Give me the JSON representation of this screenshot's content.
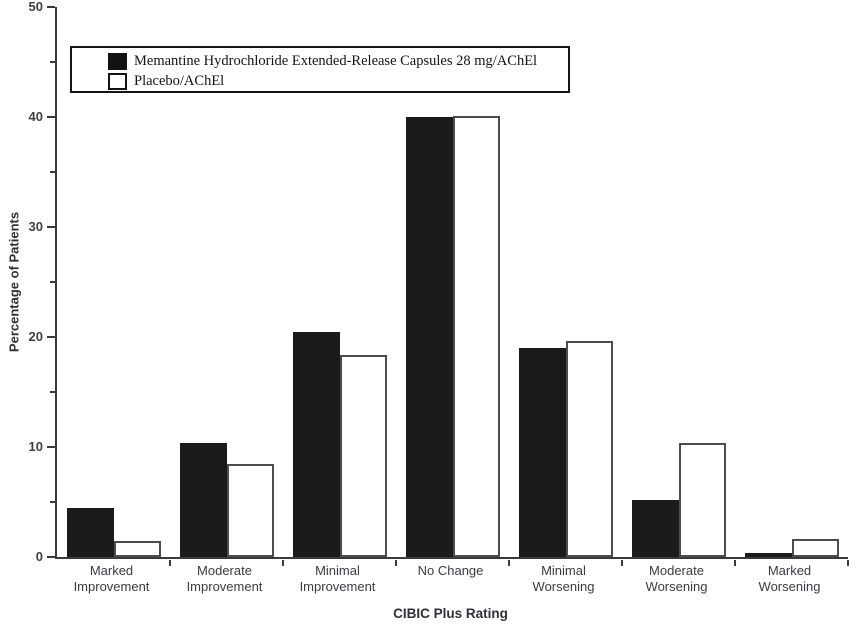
{
  "figure": {
    "kind": "grouped-bar-chart-figure",
    "background": "#ffffff"
  },
  "legend": {
    "items": [
      {
        "label": "Memantine Hydrochloride Extended-Release Capsules 28 mg/AChEl",
        "swatch_icon": "black-filled-square-icon"
      },
      {
        "label": "Placebo/AChEl",
        "swatch_icon": "white-outlined-square-icon"
      }
    ]
  },
  "chart_data": {
    "type": "bar",
    "title": "",
    "xlabel": "CIBIC Plus Rating",
    "ylabel": "Percentage of Patients",
    "categories": [
      "Marked Improvement",
      "Moderate Improvement",
      "Minimal Improvement",
      "No Change",
      "Minimal Worsening",
      "Moderate Worsening",
      "Marked Worsening"
    ],
    "category_label_lines": [
      "Marked\nImprovement",
      "Moderate\nImprovement",
      "Minimal\nImprovement",
      "No Change",
      "Minimal\nWorsening",
      "Moderate\nWorsening",
      "Marked\nWorsening"
    ],
    "series": [
      {
        "name": "Memantine Hydrochloride Extended-Release Capsules 28 mg/AChEl",
        "color": "#1b1b1b",
        "values": [
          4.5,
          10.4,
          20.5,
          40.0,
          19.0,
          5.2,
          0.4
        ]
      },
      {
        "name": "Placebo/AChEl",
        "color": "#ffffff",
        "values": [
          1.5,
          8.5,
          18.4,
          40.1,
          19.6,
          10.4,
          1.6
        ]
      }
    ],
    "ylim": [
      0,
      50
    ],
    "y_major_ticks": [
      0,
      10,
      20,
      30,
      40,
      50
    ],
    "y_minor_step": 5,
    "grid": false,
    "legend_position": "top-left-inside"
  },
  "colors": {
    "bar_fill_memantine": "#1b1b1b",
    "bar_fill_placebo": "#ffffff",
    "bar_border_placebo": "#4d4d4d",
    "axis": "#3a3a3a",
    "tick_label_text": "#3f3f46",
    "category_text": "#3b3b42",
    "legend_border": "#161616"
  }
}
